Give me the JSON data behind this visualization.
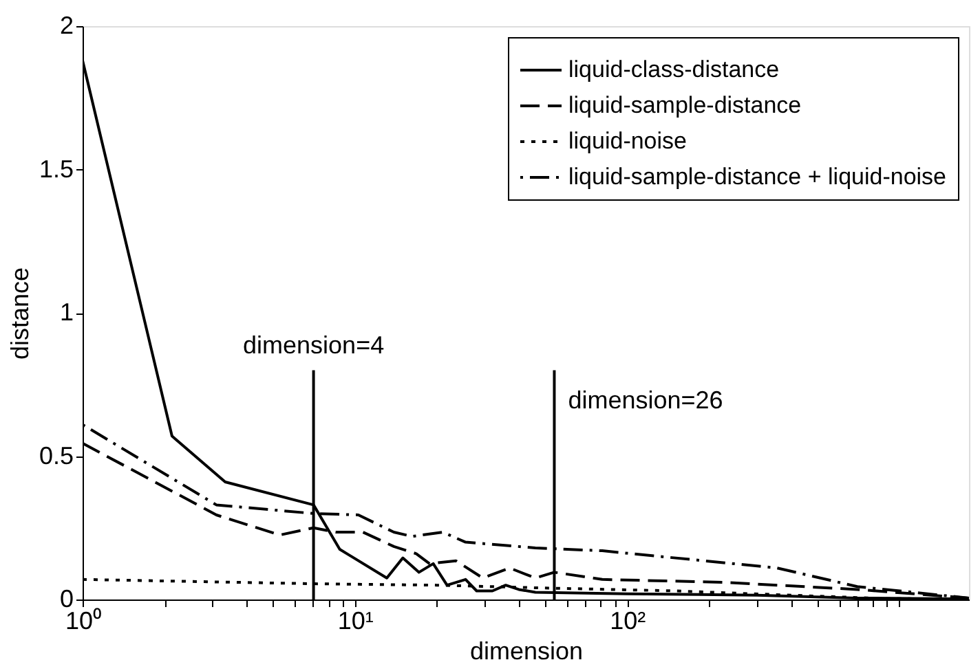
{
  "chart_data": {
    "type": "line",
    "xlabel": "dimension",
    "ylabel": "distance",
    "log": "x",
    "xlim": [
      1,
      1800
    ],
    "ylim": [
      0,
      2
    ],
    "xticks": [
      {
        "value": 1,
        "label": "10⁰"
      },
      {
        "value": 2,
        "label": null
      },
      {
        "value": 3,
        "label": null
      },
      {
        "value": 4,
        "label": null
      },
      {
        "value": 5,
        "label": null
      },
      {
        "value": 6,
        "label": null
      },
      {
        "value": 7,
        "label": null
      },
      {
        "value": 8,
        "label": null
      },
      {
        "value": 9,
        "label": null
      },
      {
        "value": 10,
        "label": "10¹"
      },
      {
        "value": 20,
        "label": null
      },
      {
        "value": 30,
        "label": null
      },
      {
        "value": 40,
        "label": null
      },
      {
        "value": 50,
        "label": null
      },
      {
        "value": 60,
        "label": null
      },
      {
        "value": 70,
        "label": null
      },
      {
        "value": 80,
        "label": null
      },
      {
        "value": 90,
        "label": null
      },
      {
        "value": 100,
        "label": "10²"
      },
      {
        "value": 200,
        "label": null
      },
      {
        "value": 300,
        "label": null
      },
      {
        "value": 400,
        "label": null
      },
      {
        "value": 500,
        "label": null
      },
      {
        "value": 600,
        "label": null
      },
      {
        "value": 700,
        "label": null
      },
      {
        "value": 800,
        "label": null
      },
      {
        "value": 900,
        "label": null
      },
      {
        "value": 1000,
        "label": null
      }
    ],
    "yticks": [
      0,
      0.5,
      1,
      1.5,
      2
    ],
    "grid": false,
    "legend": "top right",
    "series": [
      {
        "name": "liquid-class-distance",
        "color": "#000000",
        "line_style": "solid",
        "x": [
          1,
          2.13,
          3.34,
          7.05,
          8.8,
          13.1,
          15,
          17.2,
          19.4,
          21.8,
          25.5,
          28,
          32,
          35.8,
          40,
          46,
          100,
          300,
          700,
          1800
        ],
        "values": [
          1.88,
          0.57,
          0.41,
          0.33,
          0.175,
          0.075,
          0.145,
          0.095,
          0.125,
          0.05,
          0.07,
          0.03,
          0.03,
          0.05,
          0.035,
          0.025,
          0.02,
          0.015,
          0.005,
          0.002
        ]
      },
      {
        "name": "liquid-sample-distance",
        "color": "#000000",
        "line_style": "dashed",
        "x": [
          1,
          3.1,
          5.3,
          7.05,
          8.5,
          10.7,
          13.9,
          16.8,
          18.8,
          23.5,
          29.5,
          37,
          46,
          54,
          81,
          225,
          700,
          1800
        ],
        "values": [
          0.545,
          0.295,
          0.225,
          0.25,
          0.235,
          0.235,
          0.185,
          0.16,
          0.125,
          0.135,
          0.075,
          0.11,
          0.075,
          0.095,
          0.07,
          0.06,
          0.035,
          0.005
        ]
      },
      {
        "name": "liquid-noise",
        "color": "#000000",
        "line_style": "dotted",
        "x": [
          1,
          7,
          20,
          50,
          150,
          400,
          900,
          1800
        ],
        "values": [
          0.07,
          0.055,
          0.05,
          0.04,
          0.03,
          0.015,
          0.003,
          0.002
        ]
      },
      {
        "name": "liquid-sample-distance + liquid-noise",
        "color": "#000000",
        "line_style": "dashdot",
        "x": [
          1,
          3.1,
          7.05,
          10.3,
          13.9,
          16.2,
          21,
          25.5,
          46,
          81,
          355,
          700,
          1800
        ],
        "values": [
          0.61,
          0.33,
          0.3,
          0.295,
          0.235,
          0.22,
          0.235,
          0.2,
          0.18,
          0.17,
          0.11,
          0.045,
          0.005
        ]
      }
    ],
    "ref_lines": [
      {
        "axis": "x",
        "value": 7.05,
        "color": "#000000"
      },
      {
        "axis": "x",
        "value": 54,
        "color": "#000000"
      }
    ],
    "annotations": [
      {
        "text": "dimension=4",
        "x": 7.05,
        "y": 0.8
      },
      {
        "text": "dimension=26",
        "x": 54,
        "y": 0.8
      }
    ]
  }
}
